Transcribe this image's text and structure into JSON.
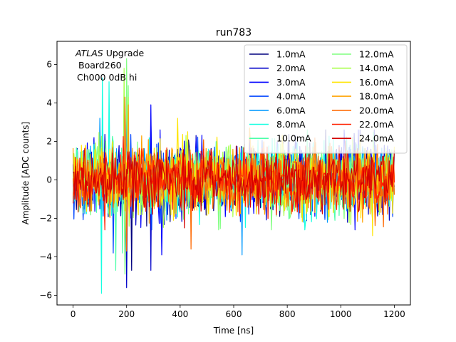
{
  "chart_data": {
    "type": "line",
    "title": "run783",
    "xlabel": "Time [ns]",
    "ylabel": "Amplitude [ADC counts]",
    "xlim": [
      -60,
      1260
    ],
    "ylim": [
      -6.5,
      7.2
    ],
    "xticks": [
      0,
      200,
      400,
      600,
      800,
      1000,
      1200
    ],
    "yticks": [
      -6,
      -4,
      -2,
      0,
      2,
      4,
      6
    ],
    "grid": false,
    "legend_position": "top-right",
    "legend_columns": 2,
    "annotation": {
      "line1_italic": "ATLAS",
      "line1_rest": " Upgrade",
      "line2": "Board260",
      "line3": "Ch000 0dB hi"
    },
    "x_range": [
      0,
      1200
    ],
    "sample_step_ns": 3.125,
    "series": [
      {
        "name": "1.0mA",
        "color": "#00007f",
        "noise_amplitude": 1.0,
        "extremes": [
          [
            220,
            -4.7
          ],
          [
            290,
            3.2
          ]
        ]
      },
      {
        "name": "2.0mA",
        "color": "#0000c8",
        "noise_amplitude": 1.1,
        "extremes": [
          [
            200,
            -5.6
          ],
          [
            290,
            -4.7
          ]
        ]
      },
      {
        "name": "3.0mA",
        "color": "#0000ff",
        "noise_amplitude": 1.1,
        "extremes": [
          [
            290,
            3.9
          ],
          [
            330,
            -3.9
          ]
        ]
      },
      {
        "name": "4.0mA",
        "color": "#0044ff",
        "noise_amplitude": 1.0,
        "extremes": [
          [
            150,
            -3.8
          ],
          [
            200,
            3.8
          ]
        ]
      },
      {
        "name": "6.0mA",
        "color": "#0099ff",
        "noise_amplitude": 1.0,
        "extremes": [
          [
            100,
            3.2
          ],
          [
            630,
            -3.9
          ]
        ]
      },
      {
        "name": "8.0mA",
        "color": "#16ffe1",
        "noise_amplitude": 1.1,
        "extremes": [
          [
            107,
            -5.9
          ],
          [
            110,
            5.3
          ],
          [
            135,
            5.1
          ]
        ]
      },
      {
        "name": "10.0mA",
        "color": "#4dffaa",
        "noise_amplitude": 1.0,
        "extremes": [
          [
            160,
            -4.7
          ],
          [
            185,
            -3.8
          ]
        ]
      },
      {
        "name": "12.0mA",
        "color": "#7fff7f",
        "noise_amplitude": 1.0,
        "extremes": [
          [
            195,
            -4.9
          ],
          [
            200,
            6.3
          ],
          [
            205,
            4.9
          ]
        ]
      },
      {
        "name": "14.0mA",
        "color": "#aaff4d",
        "noise_amplitude": 1.0,
        "extremes": [
          [
            190,
            5.8
          ],
          [
            205,
            4.3
          ]
        ]
      },
      {
        "name": "16.0mA",
        "color": "#ffe500",
        "noise_amplitude": 1.1,
        "extremes": [
          [
            390,
            3.2
          ],
          [
            1120,
            -2.9
          ]
        ]
      },
      {
        "name": "18.0mA",
        "color": "#ffa300",
        "noise_amplitude": 1.0,
        "extremes": [
          [
            205,
            3.9
          ],
          [
            660,
            2.7
          ]
        ]
      },
      {
        "name": "20.0mA",
        "color": "#ff6800",
        "noise_amplitude": 1.0,
        "extremes": [
          [
            195,
            4.3
          ],
          [
            200,
            -3.7
          ],
          [
            440,
            -3.6
          ]
        ]
      },
      {
        "name": "22.0mA",
        "color": "#ff2100",
        "noise_amplitude": 0.9,
        "extremes": []
      },
      {
        "name": "24.0mA",
        "color": "#d40000",
        "noise_amplitude": 0.9,
        "extremes": []
      }
    ]
  }
}
